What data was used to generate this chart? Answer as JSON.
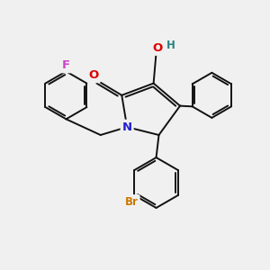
{
  "bg_color": "#f0f0f0",
  "atom_colors": {
    "N": "#2222cc",
    "O": "#dd0000",
    "H": "#2a8080",
    "F": "#cc44cc",
    "Br": "#cc7700"
  },
  "bond_color": "#111111",
  "bond_width": 1.4,
  "font_size": 8.5
}
